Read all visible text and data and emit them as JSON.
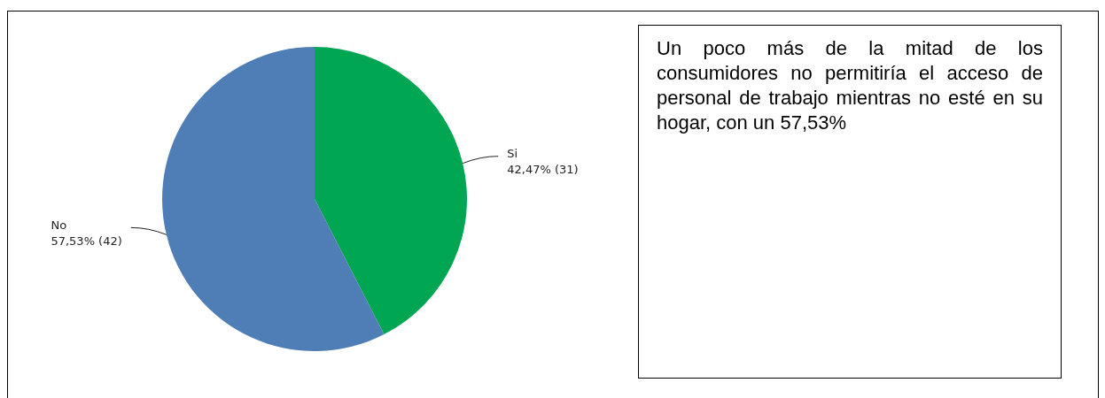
{
  "chart_data": {
    "type": "pie",
    "categories": [
      "Si",
      "No"
    ],
    "values": [
      31,
      42
    ],
    "value_labels": [
      "42,47% (31)",
      "57,53% (42)"
    ],
    "colors": [
      "#00a651",
      "#4f7db5"
    ],
    "legend": false,
    "annotations": [
      "Un poco más de la mitad de los consumidores no permitiría el acceso de personal de trabajo mientras no esté en su hogar, con un 57,53%"
    ]
  }
}
